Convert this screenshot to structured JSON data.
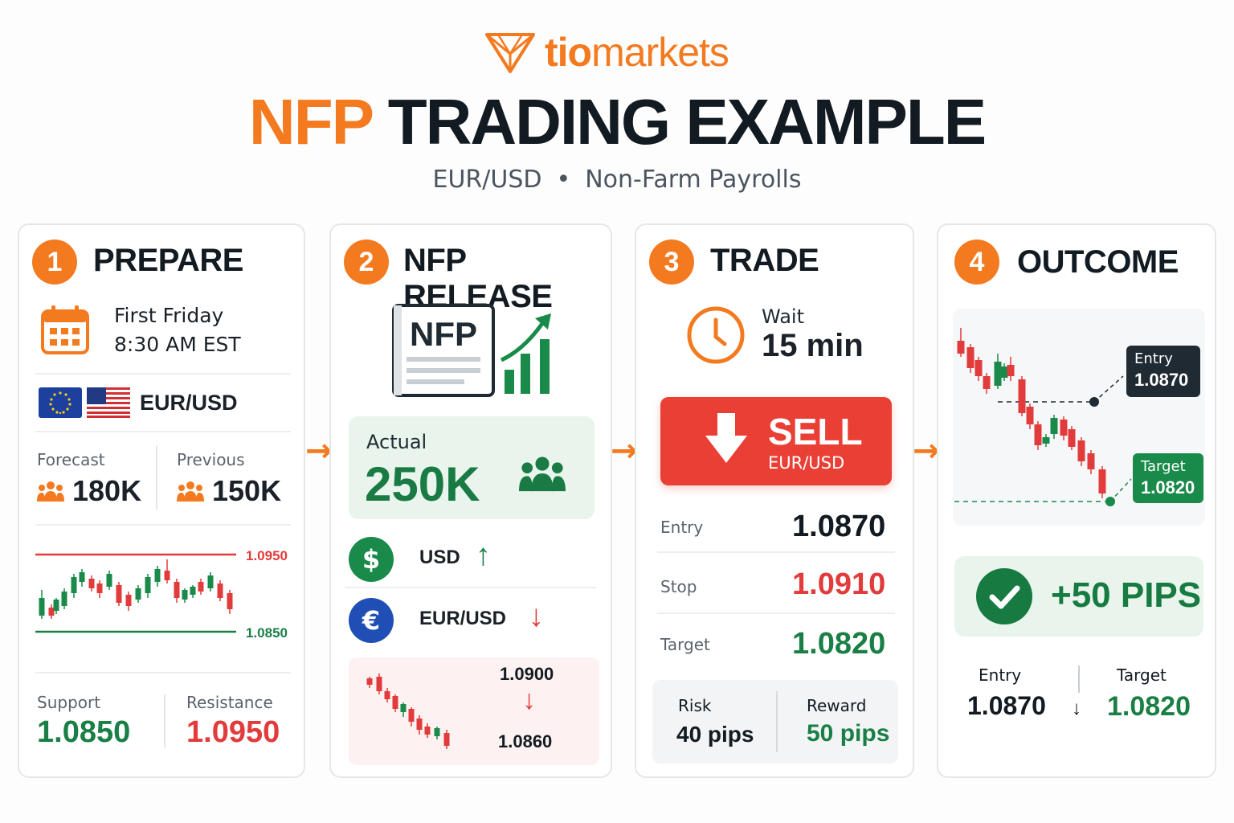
{
  "brand": {
    "logo_bold": "tio",
    "logo_light": "markets",
    "orange": "#f47a20",
    "green": "#1a7f45",
    "red": "#e23b3b"
  },
  "title": {
    "part1": "NFP",
    "part2": "TRADING EXAMPLE"
  },
  "subtitle": {
    "pair": "EUR/USD",
    "separator": "•",
    "event": "Non-Farm Payrolls"
  },
  "steps": [
    {
      "number": "1",
      "title": "PREPARE",
      "schedule_day": "First Friday",
      "schedule_time": "8:30 AM EST",
      "pair": "EUR/USD",
      "forecast_label": "Forecast",
      "forecast_value": "180K",
      "previous_label": "Previous",
      "previous_value": "150K",
      "chart_upper": "1.0950",
      "chart_lower": "1.0850",
      "support_label": "Support",
      "support_value": "1.0850",
      "resistance_label": "Resistance",
      "resistance_value": "1.0950"
    },
    {
      "number": "2",
      "title": "NFP RELEASE",
      "doc_label": "NFP",
      "actual_label": "Actual",
      "actual_value": "250K",
      "usd_label": "USD",
      "usd_direction": "↑",
      "eurusd_label": "EUR/USD",
      "eurusd_direction": "↓",
      "move_from": "1.0900",
      "move_arrow": "↓",
      "move_to": "1.0860"
    },
    {
      "number": "3",
      "title": "TRADE",
      "wait_label": "Wait",
      "wait_value": "15 min",
      "action": "SELL",
      "action_pair": "EUR/USD",
      "entry_label": "Entry",
      "entry_value": "1.0870",
      "stop_label": "Stop",
      "stop_value": "1.0910",
      "target_label": "Target",
      "target_value": "1.0820",
      "risk_label": "Risk",
      "risk_value": "40 pips",
      "reward_label": "Reward",
      "reward_value": "50 pips"
    },
    {
      "number": "4",
      "title": "OUTCOME",
      "chart_entry_label": "Entry",
      "chart_entry_value": "1.0870",
      "chart_target_label": "Target",
      "chart_target_value": "1.0820",
      "result": "+50 PIPS",
      "entry_label": "Entry",
      "entry_value": "1.0870",
      "arrow": "↓",
      "target_label": "Target",
      "target_value": "1.0820"
    }
  ],
  "flow_arrow": "→"
}
